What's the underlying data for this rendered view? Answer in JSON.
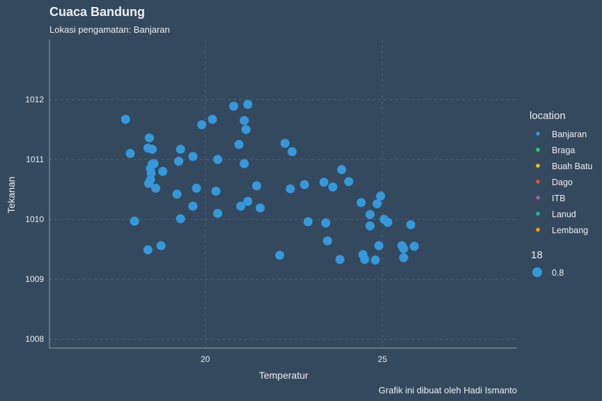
{
  "chart_data": {
    "type": "scatter",
    "title": "Cuaca Bandung",
    "subtitle": "Lokasi pengamatan: Banjaran",
    "xlabel": "Temperatur",
    "ylabel": "Tekanan",
    "caption": "Grafik ini dibuat oleh Hadi Ismanto",
    "xlim": [
      15.6,
      28.8
    ],
    "ylim": [
      1007.85,
      1013.0
    ],
    "xticks": [
      20,
      25
    ],
    "yticks": [
      1008,
      1009,
      1010,
      1011,
      1012
    ],
    "grid": true,
    "legend_placement": "right",
    "point_color": "#3498db",
    "series": [
      {
        "name": "Banjaran",
        "points": [
          [
            17.75,
            1011.67
          ],
          [
            17.88,
            1011.1
          ],
          [
            18.0,
            1009.97
          ],
          [
            18.38,
            1011.19
          ],
          [
            18.42,
            1011.36
          ],
          [
            18.5,
            1011.17
          ],
          [
            18.45,
            1010.85
          ],
          [
            18.5,
            1010.92
          ],
          [
            18.55,
            1010.93
          ],
          [
            18.47,
            1010.77
          ],
          [
            18.45,
            1010.66
          ],
          [
            18.4,
            1010.6
          ],
          [
            18.6,
            1010.52
          ],
          [
            18.38,
            1009.49
          ],
          [
            18.8,
            1010.8
          ],
          [
            18.75,
            1009.56
          ],
          [
            19.2,
            1010.42
          ],
          [
            19.3,
            1011.17
          ],
          [
            19.25,
            1010.97
          ],
          [
            19.3,
            1010.01
          ],
          [
            19.65,
            1011.05
          ],
          [
            19.75,
            1010.52
          ],
          [
            19.65,
            1010.22
          ],
          [
            19.9,
            1011.58
          ],
          [
            20.2,
            1011.67
          ],
          [
            20.3,
            1010.47
          ],
          [
            20.35,
            1010.1
          ],
          [
            20.35,
            1011.0
          ],
          [
            20.8,
            1011.89
          ],
          [
            20.95,
            1011.25
          ],
          [
            21.0,
            1010.22
          ],
          [
            21.1,
            1010.93
          ],
          [
            21.1,
            1011.65
          ],
          [
            21.15,
            1011.5
          ],
          [
            21.2,
            1011.92
          ],
          [
            21.2,
            1010.3
          ],
          [
            21.45,
            1010.56
          ],
          [
            21.55,
            1010.19
          ],
          [
            22.1,
            1009.4
          ],
          [
            22.25,
            1011.27
          ],
          [
            22.4,
            1010.51
          ],
          [
            22.45,
            1011.13
          ],
          [
            22.8,
            1010.58
          ],
          [
            22.9,
            1009.96
          ],
          [
            23.35,
            1010.62
          ],
          [
            23.4,
            1009.94
          ],
          [
            23.45,
            1009.64
          ],
          [
            23.6,
            1010.54
          ],
          [
            23.8,
            1009.33
          ],
          [
            23.85,
            1010.83
          ],
          [
            24.05,
            1010.63
          ],
          [
            24.4,
            1010.28
          ],
          [
            24.45,
            1009.41
          ],
          [
            24.5,
            1009.33
          ],
          [
            24.65,
            1010.08
          ],
          [
            24.65,
            1009.89
          ],
          [
            24.8,
            1009.32
          ],
          [
            24.85,
            1010.26
          ],
          [
            24.9,
            1009.56
          ],
          [
            24.95,
            1010.39
          ],
          [
            25.05,
            1010.0
          ],
          [
            25.15,
            1009.95
          ],
          [
            25.55,
            1009.56
          ],
          [
            25.6,
            1009.51
          ],
          [
            25.6,
            1009.36
          ],
          [
            25.8,
            1009.91
          ],
          [
            25.9,
            1009.55
          ]
        ]
      }
    ],
    "legend": {
      "location_title": "location",
      "items": [
        {
          "label": "Banjaran",
          "color": "#3498db"
        },
        {
          "label": "Braga",
          "color": "#2ecc71"
        },
        {
          "label": "Buah Batu",
          "color": "#f1c40f"
        },
        {
          "label": "Dago",
          "color": "#e74c3c"
        },
        {
          "label": "ITB",
          "color": "#9b59b6"
        },
        {
          "label": "Lanud",
          "color": "#1abc9c"
        },
        {
          "label": "Lembang",
          "color": "#f39c12"
        }
      ],
      "size_title": "18",
      "size_item_label": "0.8"
    }
  }
}
